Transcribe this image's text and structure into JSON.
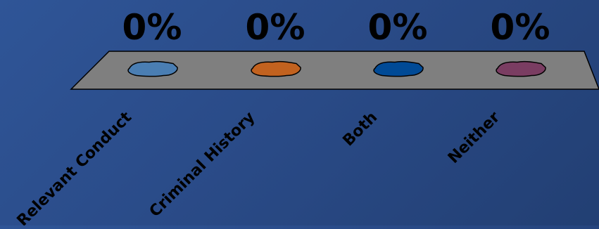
{
  "chart_data": {
    "type": "bar",
    "categories": [
      "Relevant Conduct",
      "Criminal History",
      "Both",
      "Neither"
    ],
    "values": [
      0,
      0,
      0,
      0
    ],
    "value_labels": [
      "0%",
      "0%",
      "0%",
      "0%"
    ],
    "colors": [
      "#4a7eb3",
      "#c2621f",
      "#004a96",
      "#7a3d62"
    ],
    "ylim": [
      0,
      100
    ],
    "platform_color": "#7f7f7f",
    "background_colors": [
      "#2f5597",
      "#223f73"
    ]
  }
}
